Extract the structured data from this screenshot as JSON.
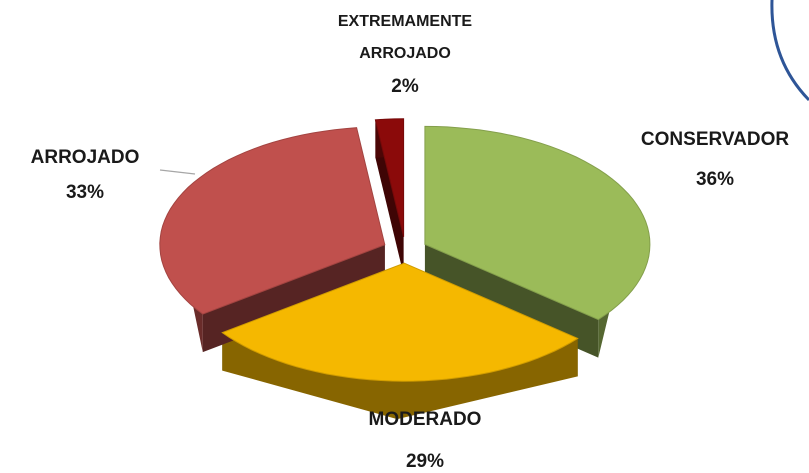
{
  "chart_data": {
    "type": "pie3d",
    "categories": [
      "CONSERVADOR",
      "MODERADO",
      "ARROJADO",
      "EXTREMAMENTE ARROJADO"
    ],
    "values": [
      36,
      29,
      33,
      2
    ],
    "value_labels": [
      "36%",
      "29%",
      "33%",
      "2%"
    ],
    "colors": [
      "#9bbb59",
      "#f5b800",
      "#c0504d",
      "#8b0a0a"
    ]
  }
}
